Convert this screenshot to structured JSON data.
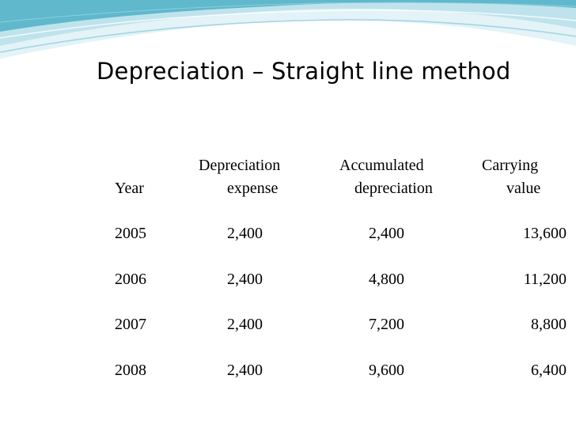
{
  "slide": {
    "title": "Depreciation – Straight line method"
  },
  "table": {
    "headers": {
      "year": "Year",
      "depreciation_line1": "Depreciation",
      "depreciation_line2": "expense",
      "accumulated_line1": "Accumulated",
      "accumulated_line2": "depreciation",
      "carrying_line1": "Carrying",
      "carrying_line2": "value"
    },
    "rows": [
      {
        "year": "2005",
        "expense": "2,400",
        "accumulated": "2,400",
        "carrying": "13,600"
      },
      {
        "year": "2006",
        "expense": "2,400",
        "accumulated": "4,800",
        "carrying": "11,200"
      },
      {
        "year": "2007",
        "expense": "2,400",
        "accumulated": "7,200",
        "carrying": "8,800"
      },
      {
        "year": "2008",
        "expense": "2,400",
        "accumulated": "9,600",
        "carrying": "6,400"
      }
    ]
  },
  "theme": {
    "wave_dark": "#5fb8cc",
    "wave_light": "#bfe3ec",
    "wave_pale": "#e3f3f7"
  }
}
